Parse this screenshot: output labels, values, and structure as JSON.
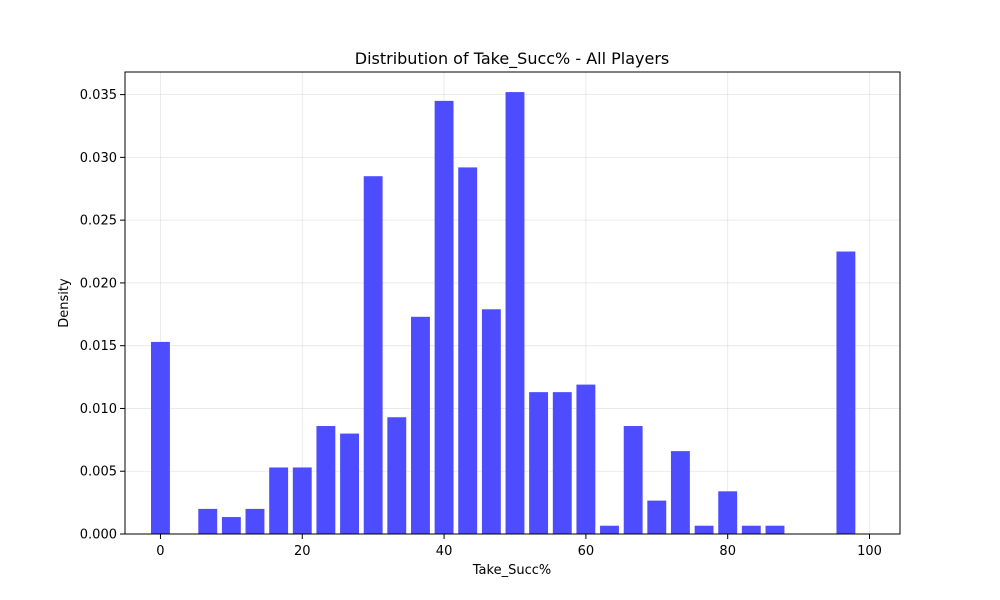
{
  "chart_data": {
    "type": "bar",
    "title": "Distribution of Take_Succ% - All Players",
    "xlabel": "Take_Succ%",
    "ylabel": "Density",
    "xlim": [
      -5,
      104.3
    ],
    "ylim": [
      0,
      0.0368
    ],
    "xticks": [
      0,
      20,
      40,
      60,
      80,
      100
    ],
    "xtick_labels": [
      "0",
      "20",
      "40",
      "60",
      "80",
      "100"
    ],
    "yticks": [
      0,
      0.005,
      0.01,
      0.015,
      0.02,
      0.025,
      0.03,
      0.035
    ],
    "ytick_labels": [
      "0.000",
      "0.005",
      "0.010",
      "0.015",
      "0.020",
      "0.025",
      "0.030",
      "0.035"
    ],
    "grid": true,
    "bar_color": "#4d4dff",
    "bin_width": 3.33,
    "bars": [
      {
        "x": 0.0,
        "value": 0.0153
      },
      {
        "x": 6.67,
        "value": 0.002
      },
      {
        "x": 10.0,
        "value": 0.00135
      },
      {
        "x": 13.33,
        "value": 0.002
      },
      {
        "x": 16.67,
        "value": 0.0053
      },
      {
        "x": 20.0,
        "value": 0.0053
      },
      {
        "x": 23.33,
        "value": 0.0086
      },
      {
        "x": 26.67,
        "value": 0.008
      },
      {
        "x": 30.0,
        "value": 0.0285
      },
      {
        "x": 33.33,
        "value": 0.0093
      },
      {
        "x": 36.67,
        "value": 0.0173
      },
      {
        "x": 40.0,
        "value": 0.0345
      },
      {
        "x": 43.33,
        "value": 0.0292
      },
      {
        "x": 46.67,
        "value": 0.0179
      },
      {
        "x": 50.0,
        "value": 0.0352
      },
      {
        "x": 53.33,
        "value": 0.0113
      },
      {
        "x": 56.67,
        "value": 0.0113
      },
      {
        "x": 60.0,
        "value": 0.0119
      },
      {
        "x": 63.33,
        "value": 0.00066
      },
      {
        "x": 66.67,
        "value": 0.0086
      },
      {
        "x": 70.0,
        "value": 0.00266
      },
      {
        "x": 73.33,
        "value": 0.0066
      },
      {
        "x": 76.67,
        "value": 0.00066
      },
      {
        "x": 80.0,
        "value": 0.0034
      },
      {
        "x": 83.33,
        "value": 0.00066
      },
      {
        "x": 86.67,
        "value": 0.00066
      },
      {
        "x": 96.67,
        "value": 0.0225
      }
    ]
  }
}
